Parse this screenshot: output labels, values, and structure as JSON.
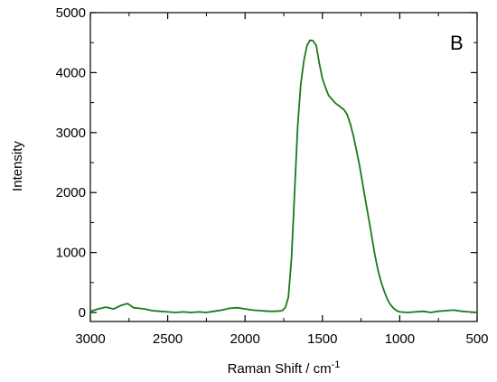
{
  "chart_data": {
    "type": "line",
    "panel_label": "B",
    "xlabel": "Raman Shift / cm",
    "xlabel_superscript": "-1",
    "ylabel": "Intensity",
    "xlim": [
      3000,
      500
    ],
    "ylim": [
      -150,
      5000
    ],
    "x_reversed": true,
    "grid": false,
    "legend": "none",
    "x_ticks": [
      3000,
      2500,
      2000,
      1500,
      1000,
      500
    ],
    "x_tick_labels": [
      "3000",
      "2500",
      "2000",
      "1500",
      "1000",
      "500"
    ],
    "y_ticks": [
      0,
      1000,
      2000,
      3000,
      4000,
      5000
    ],
    "y_tick_labels": [
      "0",
      "1000",
      "2000",
      "3000",
      "4000",
      "5000"
    ],
    "series": [
      {
        "color": "#1a7a1a",
        "points": [
          [
            3000,
            20
          ],
          [
            2950,
            60
          ],
          [
            2900,
            90
          ],
          [
            2850,
            60
          ],
          [
            2800,
            120
          ],
          [
            2760,
            150
          ],
          [
            2720,
            80
          ],
          [
            2650,
            60
          ],
          [
            2600,
            30
          ],
          [
            2550,
            20
          ],
          [
            2500,
            10
          ],
          [
            2450,
            0
          ],
          [
            2400,
            10
          ],
          [
            2350,
            0
          ],
          [
            2300,
            10
          ],
          [
            2250,
            0
          ],
          [
            2200,
            20
          ],
          [
            2150,
            40
          ],
          [
            2100,
            70
          ],
          [
            2050,
            80
          ],
          [
            2000,
            60
          ],
          [
            1950,
            40
          ],
          [
            1900,
            30
          ],
          [
            1850,
            20
          ],
          [
            1800,
            20
          ],
          [
            1760,
            30
          ],
          [
            1740,
            80
          ],
          [
            1720,
            250
          ],
          [
            1700,
            900
          ],
          [
            1680,
            2000
          ],
          [
            1660,
            3100
          ],
          [
            1640,
            3800
          ],
          [
            1620,
            4200
          ],
          [
            1600,
            4450
          ],
          [
            1580,
            4540
          ],
          [
            1560,
            4530
          ],
          [
            1540,
            4450
          ],
          [
            1520,
            4150
          ],
          [
            1500,
            3900
          ],
          [
            1480,
            3750
          ],
          [
            1460,
            3620
          ],
          [
            1440,
            3560
          ],
          [
            1420,
            3500
          ],
          [
            1400,
            3460
          ],
          [
            1380,
            3420
          ],
          [
            1360,
            3380
          ],
          [
            1340,
            3300
          ],
          [
            1320,
            3150
          ],
          [
            1300,
            2950
          ],
          [
            1280,
            2700
          ],
          [
            1260,
            2450
          ],
          [
            1240,
            2150
          ],
          [
            1220,
            1850
          ],
          [
            1200,
            1550
          ],
          [
            1180,
            1250
          ],
          [
            1160,
            950
          ],
          [
            1140,
            700
          ],
          [
            1120,
            500
          ],
          [
            1100,
            350
          ],
          [
            1080,
            220
          ],
          [
            1060,
            130
          ],
          [
            1040,
            70
          ],
          [
            1020,
            30
          ],
          [
            1000,
            10
          ],
          [
            950,
            0
          ],
          [
            900,
            10
          ],
          [
            850,
            20
          ],
          [
            800,
            0
          ],
          [
            750,
            20
          ],
          [
            700,
            30
          ],
          [
            650,
            40
          ],
          [
            600,
            20
          ],
          [
            550,
            10
          ],
          [
            500,
            0
          ]
        ]
      }
    ]
  }
}
